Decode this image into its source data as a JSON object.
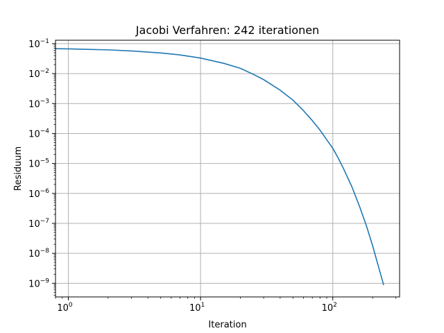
{
  "chart_data": {
    "type": "line",
    "title": "Jacobi Verfahren: 242 iterationen",
    "xlabel": "Iteration",
    "ylabel": "Residuum",
    "xscale": "log",
    "yscale": "log",
    "xlim": [
      0.8,
      320
    ],
    "ylim": [
      3.5e-10,
      0.13
    ],
    "grid": true,
    "legend": "none",
    "x_ticks": [
      {
        "value": 1,
        "base": "10",
        "exp": "0"
      },
      {
        "value": 10,
        "base": "10",
        "exp": "1"
      },
      {
        "value": 100,
        "base": "10",
        "exp": "2"
      }
    ],
    "y_ticks": [
      {
        "value": 0.1,
        "base": "10",
        "exp": "−1"
      },
      {
        "value": 0.01,
        "base": "10",
        "exp": "−2"
      },
      {
        "value": 0.001,
        "base": "10",
        "exp": "−3"
      },
      {
        "value": 0.0001,
        "base": "10",
        "exp": "−4"
      },
      {
        "value": 1e-05,
        "base": "10",
        "exp": "−5"
      },
      {
        "value": 1e-06,
        "base": "10",
        "exp": "−6"
      },
      {
        "value": 1e-07,
        "base": "10",
        "exp": "−7"
      },
      {
        "value": 1e-08,
        "base": "10",
        "exp": "−8"
      },
      {
        "value": 1e-09,
        "base": "10",
        "exp": "−9"
      }
    ],
    "series": [
      {
        "color": "#1f77b4",
        "x": [
          0.8,
          1,
          2,
          3,
          5,
          7,
          10,
          15,
          20,
          25,
          30,
          40,
          50,
          60,
          70,
          80,
          90,
          100,
          110,
          120,
          140,
          160,
          180,
          200,
          220,
          242
        ],
        "y": [
          0.068,
          0.067,
          0.062,
          0.057,
          0.049,
          0.042,
          0.033,
          0.022,
          0.015,
          0.0095,
          0.0063,
          0.0028,
          0.0013,
          0.00058,
          0.00027,
          0.00013,
          6.2e-05,
          3.2e-05,
          1.5e-05,
          7e-06,
          1.6e-06,
          3.5e-07,
          8e-08,
          1.8e-08,
          4e-09,
          9e-10
        ]
      }
    ]
  }
}
